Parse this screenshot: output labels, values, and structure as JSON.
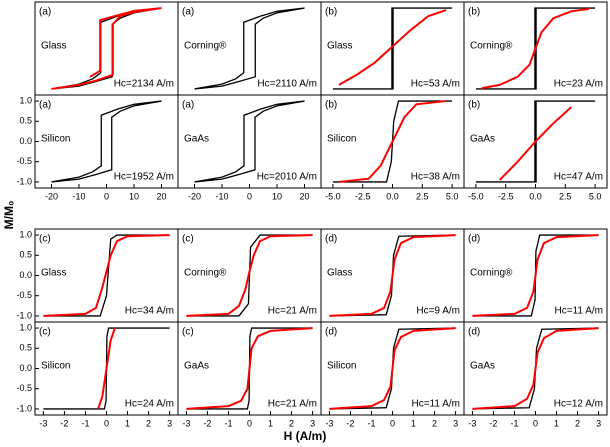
{
  "figure": {
    "ylabel": "M/M₀",
    "xlabel": "H (A/m)"
  },
  "chart_data": [
    {
      "type": "line",
      "panel_label": "(a)",
      "sample": "Glass",
      "annotation": "Hc=2134 A/m",
      "xlim": [
        -26,
        26
      ],
      "ylim": [
        -1.15,
        1.15
      ],
      "series": [
        {
          "color": "#000000",
          "x": [
            -20,
            -10,
            -4,
            2.1,
            2.1,
            5,
            10,
            20,
            10,
            4,
            -2.1,
            -2.1,
            -5,
            -10,
            -20
          ],
          "values": [
            -1,
            -0.93,
            -0.82,
            -0.7,
            0.6,
            0.75,
            0.88,
            1,
            0.92,
            0.8,
            0.65,
            -0.6,
            -0.75,
            -0.88,
            -1
          ]
        },
        {
          "color": "#ff0000",
          "x": [
            -20,
            -10,
            -4,
            2.3,
            2.3,
            5,
            10,
            20,
            10,
            4,
            -2.3,
            -2.3,
            -6
          ],
          "values": [
            -1,
            -0.9,
            -0.8,
            -0.65,
            0.6,
            0.8,
            0.9,
            1,
            0.93,
            0.82,
            0.7,
            -0.55,
            -0.7
          ]
        }
      ]
    },
    {
      "type": "line",
      "panel_label": "(a)",
      "sample": "Corning®",
      "annotation": "Hc=2110 A/m",
      "xlim": [
        -26,
        26
      ],
      "ylim": [
        -1.15,
        1.15
      ],
      "series": [
        {
          "color": "#000000",
          "x": [
            -20,
            -10,
            -4,
            2.1,
            2.1,
            5,
            10,
            20,
            10,
            4,
            -2.1,
            -2.1,
            -5,
            -10,
            -20
          ],
          "values": [
            -1,
            -0.93,
            -0.82,
            -0.7,
            0.6,
            0.75,
            0.88,
            1,
            0.92,
            0.8,
            0.65,
            -0.6,
            -0.75,
            -0.88,
            -1
          ]
        }
      ]
    },
    {
      "type": "line",
      "panel_label": "(b)",
      "sample": "Glass",
      "annotation": "Hc=53 A/m",
      "xlim": [
        -6,
        6
      ],
      "ylim": [
        -1.15,
        1.15
      ],
      "series": [
        {
          "color": "#000000",
          "x": [
            -5,
            0.05,
            0.05,
            5,
            -0.05,
            -0.05,
            -5
          ],
          "values": [
            -1,
            -1,
            1,
            1,
            1,
            -1,
            -1
          ]
        },
        {
          "color": "#ff0000",
          "x": [
            -4.5,
            -3,
            -1.5,
            0,
            1.5,
            3,
            4.5
          ],
          "values": [
            -0.9,
            -0.65,
            -0.35,
            0.05,
            0.45,
            0.8,
            0.95
          ]
        }
      ]
    },
    {
      "type": "line",
      "panel_label": "(b)",
      "sample": "Corning®",
      "annotation": "Hc=23 A/m",
      "xlim": [
        -6,
        6
      ],
      "ylim": [
        -1.15,
        1.15
      ],
      "series": [
        {
          "color": "#000000",
          "x": [
            -5,
            0.05,
            0.05,
            5,
            -0.05,
            -0.05,
            -5
          ],
          "values": [
            -1,
            -1,
            1,
            1,
            1,
            -1,
            -1
          ]
        },
        {
          "color": "#ff0000",
          "x": [
            -4.5,
            -3,
            -1.5,
            -0.5,
            0,
            0.5,
            1.5,
            3,
            4.5
          ],
          "values": [
            -0.98,
            -0.9,
            -0.7,
            -0.4,
            0,
            0.4,
            0.75,
            0.92,
            0.98
          ]
        }
      ]
    },
    {
      "type": "line",
      "panel_label": "(a)",
      "sample": "Silicon",
      "annotation": "Hc=1952 A/m",
      "xlim": [
        -26,
        26
      ],
      "ylim": [
        -1.15,
        1.15
      ],
      "yticks": [
        {
          "value": -1,
          "label": "-1.0"
        },
        {
          "value": -0.5,
          "label": "-0.5"
        },
        {
          "value": 0,
          "label": "0.0"
        },
        {
          "value": 0.5,
          "label": "0.5"
        },
        {
          "value": 1,
          "label": "1.0"
        }
      ],
      "xticks": [
        -20,
        -10,
        0,
        10,
        20
      ],
      "series": [
        {
          "color": "#000000",
          "x": [
            -20,
            -10,
            -4,
            1.9,
            1.9,
            5,
            10,
            20,
            10,
            4,
            -1.9,
            -1.9,
            -5,
            -10,
            -20
          ],
          "values": [
            -1,
            -0.93,
            -0.82,
            -0.7,
            0.6,
            0.75,
            0.88,
            1,
            0.92,
            0.8,
            0.65,
            -0.6,
            -0.75,
            -0.88,
            -1
          ]
        }
      ]
    },
    {
      "type": "line",
      "panel_label": "(a)",
      "sample": "GaAs",
      "annotation": "Hc=2010 A/m",
      "xlim": [
        -26,
        26
      ],
      "ylim": [
        -1.15,
        1.15
      ],
      "xticks": [
        -20,
        -10,
        0,
        10,
        20
      ],
      "series": [
        {
          "color": "#000000",
          "x": [
            -20,
            -10,
            -4,
            2,
            2,
            5,
            10,
            20,
            10,
            4,
            -2,
            -2,
            -5,
            -10,
            -20
          ],
          "values": [
            -1,
            -0.93,
            -0.82,
            -0.7,
            0.6,
            0.75,
            0.88,
            1,
            0.92,
            0.8,
            0.65,
            -0.6,
            -0.75,
            -0.88,
            -1
          ]
        }
      ]
    },
    {
      "type": "line",
      "panel_label": "(b)",
      "sample": "Silicon",
      "annotation": "Hc=38 A/m",
      "xlim": [
        -6,
        6
      ],
      "ylim": [
        -1.15,
        1.15
      ],
      "xticks": [
        {
          "value": -5,
          "label": "-5.0"
        },
        {
          "value": -2.5,
          "label": "-2.5"
        },
        {
          "value": 0,
          "label": "0.0"
        },
        {
          "value": 2.5,
          "label": "2.5"
        },
        {
          "value": 5,
          "label": "5.0"
        }
      ],
      "series": [
        {
          "color": "#000000",
          "x": [
            -5,
            -0.5,
            -0.1,
            0.1,
            0.5,
            5
          ],
          "values": [
            -1,
            -1,
            -0.5,
            0.5,
            1,
            1
          ]
        },
        {
          "color": "#ff0000",
          "x": [
            -4.5,
            -2,
            -1,
            0,
            1,
            2,
            4.5
          ],
          "values": [
            -1,
            -0.92,
            -0.6,
            0,
            0.6,
            0.92,
            1
          ]
        }
      ]
    },
    {
      "type": "line",
      "panel_label": "(b)",
      "sample": "GaAs",
      "annotation": "Hc=47 A/m",
      "xlim": [
        -6,
        6
      ],
      "ylim": [
        -1.15,
        1.15
      ],
      "xticks": [
        {
          "value": -5,
          "label": "-5.0"
        },
        {
          "value": -2.5,
          "label": "-2.5"
        },
        {
          "value": 0,
          "label": "0.0"
        },
        {
          "value": 2.5,
          "label": "2.5"
        },
        {
          "value": 5,
          "label": "5.0"
        }
      ],
      "series": [
        {
          "color": "#000000",
          "x": [
            -5,
            0.05,
            0.05,
            5,
            -0.05,
            -0.05,
            -5
          ],
          "values": [
            -1,
            -1,
            1,
            1,
            1,
            -1,
            -1
          ]
        },
        {
          "color": "#ff0000",
          "x": [
            -3,
            -1.5,
            0,
            1.5,
            3
          ],
          "values": [
            -0.95,
            -0.5,
            0,
            0.45,
            0.85
          ]
        }
      ]
    },
    {
      "type": "line",
      "panel_label": "(c)",
      "sample": "Glass",
      "annotation": "Hc=34 A/m",
      "xlim": [
        -3.4,
        3.4
      ],
      "ylim": [
        -1.15,
        1.15
      ],
      "yticks": [
        {
          "value": -1,
          "label": "-1.0"
        },
        {
          "value": -0.5,
          "label": "-0.5"
        },
        {
          "value": 0,
          "label": "0.0"
        },
        {
          "value": 0.5,
          "label": "0.5"
        },
        {
          "value": 1,
          "label": "1.0"
        }
      ],
      "series": [
        {
          "color": "#000000",
          "x": [
            -3,
            -0.3,
            0,
            0.2,
            0.5,
            3
          ],
          "values": [
            -1,
            -1,
            -0.5,
            0.9,
            1,
            1
          ]
        },
        {
          "color": "#ff0000",
          "x": [
            -3,
            -1,
            -0.5,
            -0.2,
            0,
            0.2,
            0.5,
            1,
            3
          ],
          "values": [
            -1,
            -0.95,
            -0.8,
            -0.3,
            0.1,
            0.5,
            0.85,
            0.97,
            1
          ]
        }
      ]
    },
    {
      "type": "line",
      "panel_label": "(c)",
      "sample": "Corning®",
      "annotation": "Hc=21 A/m",
      "xlim": [
        -3.4,
        3.4
      ],
      "ylim": [
        -1.15,
        1.15
      ],
      "series": [
        {
          "color": "#000000",
          "x": [
            -3,
            -0.5,
            -0.05,
            0.05,
            0.5,
            3
          ],
          "values": [
            -1,
            -1,
            -0.7,
            0.7,
            1,
            1
          ]
        },
        {
          "color": "#ff0000",
          "x": [
            -3,
            -1,
            -0.5,
            -0.2,
            0,
            0.2,
            0.5,
            1,
            3
          ],
          "values": [
            -1,
            -0.95,
            -0.75,
            -0.35,
            0.1,
            0.5,
            0.85,
            0.97,
            1
          ]
        }
      ]
    },
    {
      "type": "line",
      "panel_label": "(d)",
      "sample": "Glass",
      "annotation": "Hc=9 A/m",
      "xlim": [
        -3.4,
        3.4
      ],
      "ylim": [
        -1.15,
        1.15
      ],
      "series": [
        {
          "color": "#000000",
          "x": [
            -3,
            -0.3,
            -0.05,
            0.05,
            0.3,
            3
          ],
          "values": [
            -1,
            -0.97,
            -0.5,
            0.5,
            0.97,
            1
          ]
        },
        {
          "color": "#ff0000",
          "x": [
            -3,
            -1,
            -0.4,
            -0.1,
            0,
            0.1,
            0.4,
            1,
            3
          ],
          "values": [
            -1,
            -0.95,
            -0.8,
            -0.4,
            0,
            0.4,
            0.8,
            0.95,
            1
          ]
        }
      ]
    },
    {
      "type": "line",
      "panel_label": "(d)",
      "sample": "Corning®",
      "annotation": "Hc=11 A/m",
      "xlim": [
        -3.4,
        3.4
      ],
      "ylim": [
        -1.15,
        1.15
      ],
      "series": [
        {
          "color": "#000000",
          "x": [
            -3,
            -0.2,
            -0.02,
            0.02,
            0.2,
            3
          ],
          "values": [
            -1,
            -1,
            -0.6,
            0.6,
            1,
            1
          ]
        },
        {
          "color": "#ff0000",
          "x": [
            -3,
            -1,
            -0.4,
            -0.1,
            0,
            0.1,
            0.4,
            1,
            3
          ],
          "values": [
            -1,
            -0.95,
            -0.8,
            -0.4,
            0,
            0.4,
            0.8,
            0.95,
            1
          ]
        }
      ]
    },
    {
      "type": "line",
      "panel_label": "(c)",
      "sample": "Silicon",
      "annotation": "Hc=24 A/m",
      "xlim": [
        -3.4,
        3.4
      ],
      "ylim": [
        -1.15,
        1.15
      ],
      "yticks": [
        {
          "value": -1,
          "label": "-1.0"
        },
        {
          "value": -0.5,
          "label": "-0.5"
        },
        {
          "value": 0,
          "label": "0.0"
        },
        {
          "value": 0.5,
          "label": "0.5"
        },
        {
          "value": 1,
          "label": "1.0"
        }
      ],
      "xticks": [
        -3,
        -2,
        -1,
        0,
        1,
        2,
        3
      ],
      "series": [
        {
          "color": "#000000",
          "x": [
            -3,
            -0.1,
            -0.02,
            0.02,
            0.1,
            3
          ],
          "values": [
            -1,
            -1,
            -0.8,
            0.8,
            1,
            1
          ]
        },
        {
          "color": "#ff0000",
          "x": [
            -0.4,
            -0.2,
            0,
            0.2,
            0.4
          ],
          "values": [
            -1,
            -0.7,
            0,
            0.7,
            1
          ]
        }
      ]
    },
    {
      "type": "line",
      "panel_label": "(c)",
      "sample": "GaAs",
      "annotation": "Hc=21 A/m",
      "xlim": [
        -3.4,
        3.4
      ],
      "ylim": [
        -1.15,
        1.15
      ],
      "xticks": [
        -3,
        -2,
        -1,
        0,
        1,
        2,
        3
      ],
      "series": [
        {
          "color": "#000000",
          "x": [
            -3,
            -0.1,
            -0.02,
            0.02,
            0.1,
            3
          ],
          "values": [
            -1,
            -1,
            -0.8,
            0.8,
            1,
            1
          ]
        },
        {
          "color": "#ff0000",
          "x": [
            -3,
            -1,
            -0.4,
            -0.1,
            0,
            0.1,
            0.4,
            1,
            3
          ],
          "values": [
            -1,
            -0.93,
            -0.8,
            -0.5,
            0,
            0.5,
            0.8,
            0.93,
            1
          ]
        }
      ]
    },
    {
      "type": "line",
      "panel_label": "(d)",
      "sample": "Silicon",
      "annotation": "Hc=11 A/m",
      "xlim": [
        -3.4,
        3.4
      ],
      "ylim": [
        -1.15,
        1.15
      ],
      "xticks": [
        -3,
        -2,
        -1,
        0,
        1,
        2,
        3
      ],
      "series": [
        {
          "color": "#000000",
          "x": [
            -3,
            -0.3,
            -0.05,
            0.05,
            0.3,
            3
          ],
          "values": [
            -1,
            -0.97,
            -0.5,
            0.5,
            0.97,
            1
          ]
        },
        {
          "color": "#ff0000",
          "x": [
            -3,
            -1,
            -0.4,
            -0.1,
            0,
            0.1,
            0.4,
            1,
            3
          ],
          "values": [
            -1,
            -0.93,
            -0.78,
            -0.45,
            0,
            0.45,
            0.78,
            0.93,
            1
          ]
        }
      ]
    },
    {
      "type": "line",
      "panel_label": "(d)",
      "sample": "GaAs",
      "annotation": "Hc=12 A/m",
      "xlim": [
        -3.4,
        3.4
      ],
      "ylim": [
        -1.15,
        1.15
      ],
      "xticks": [
        -3,
        -2,
        -1,
        0,
        1,
        2,
        3
      ],
      "series": [
        {
          "color": "#000000",
          "x": [
            -3,
            -0.3,
            -0.05,
            0.05,
            0.3,
            3
          ],
          "values": [
            -1,
            -0.97,
            -0.5,
            0.5,
            0.97,
            1
          ]
        },
        {
          "color": "#ff0000",
          "x": [
            -3,
            -1,
            -0.4,
            -0.1,
            0,
            0.1,
            0.4,
            1,
            3
          ],
          "values": [
            -1,
            -0.93,
            -0.75,
            -0.4,
            0,
            0.4,
            0.75,
            0.93,
            1
          ]
        }
      ]
    }
  ]
}
